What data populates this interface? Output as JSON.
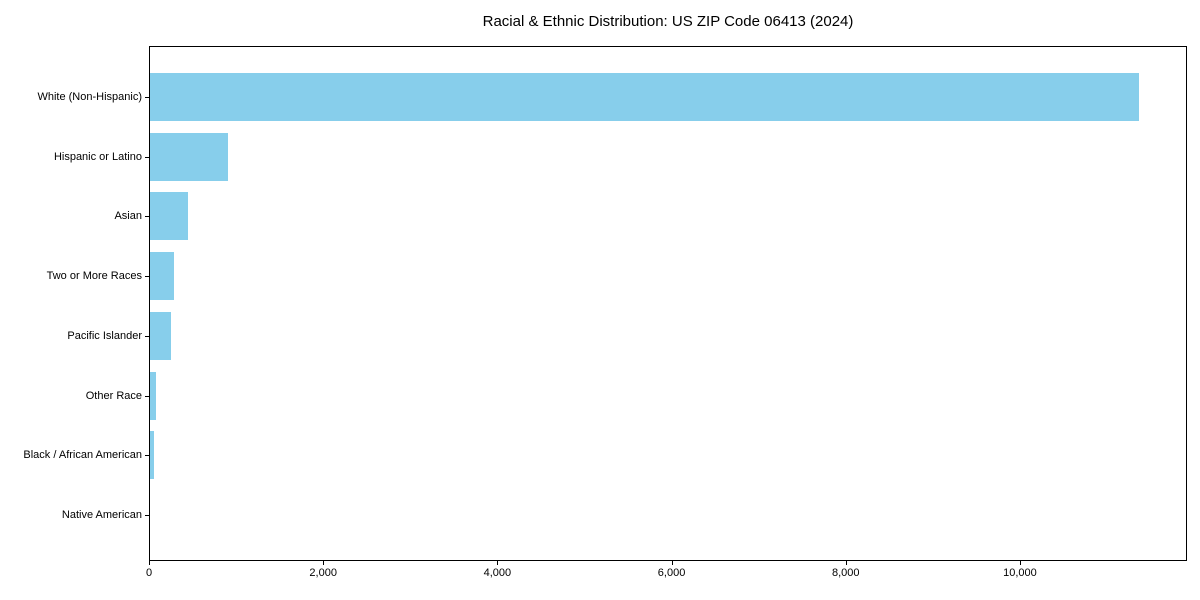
{
  "chart_data": {
    "type": "bar",
    "orientation": "horizontal",
    "title": "Racial & Ethnic Distribution: US ZIP Code 06413 (2024)",
    "categories": [
      "White (Non-Hispanic)",
      "Hispanic or Latino",
      "Asian",
      "Two or More Races",
      "Pacific Islander",
      "Other Race",
      "Black / African American",
      "Native American"
    ],
    "values": [
      11350,
      900,
      440,
      275,
      245,
      70,
      50,
      0
    ],
    "xlabel": "",
    "ylabel": "",
    "xlim": [
      0,
      11918
    ],
    "x_tick_values": [
      0,
      2000,
      4000,
      6000,
      8000,
      10000
    ],
    "x_tick_labels": [
      "0",
      "2,000",
      "4,000",
      "6,000",
      "8,000",
      "10,000"
    ],
    "bar_color": "#87CEEB",
    "grid": false,
    "legend": null,
    "background_color": "#ffffff",
    "frame_color": "#000000"
  }
}
